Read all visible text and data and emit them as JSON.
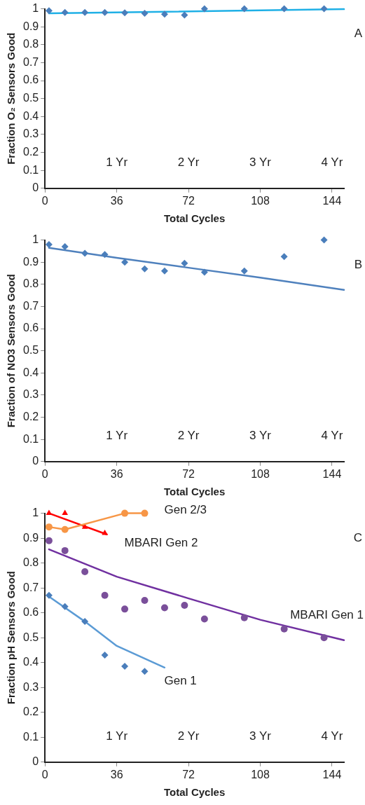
{
  "chart_data": [
    {
      "type": "scatter",
      "ylabel": "Fraction O₂ Sensors Good",
      "xlabel": "Total Cycles",
      "xlim": [
        0,
        150
      ],
      "xticks": [
        0,
        36,
        72,
        108,
        144
      ],
      "ylim": [
        0,
        1
      ],
      "yticks": [
        0,
        0.1,
        0.2,
        0.3,
        0.4,
        0.5,
        0.6,
        0.7,
        0.8,
        0.9,
        1
      ],
      "grid": false,
      "legend": false,
      "annotations": [
        "A",
        "1 Yr",
        "2 Yr",
        "3 Yr",
        "4 Yr"
      ],
      "series": [
        {
          "type": "scatter",
          "marker": "diamond",
          "color": "#4a7ebb",
          "x": [
            2,
            10,
            20,
            30,
            40,
            50,
            60,
            70,
            80,
            100,
            120,
            140
          ],
          "values": [
            0.99,
            0.98,
            0.98,
            0.98,
            0.978,
            0.975,
            0.97,
            0.965,
            1,
            1,
            1,
            1
          ]
        },
        {
          "type": "line",
          "marker": "none",
          "color": "#1fb0e6",
          "x": [
            2,
            150
          ],
          "values": [
            0.975,
            0.998
          ]
        }
      ]
    },
    {
      "type": "scatter",
      "ylabel": "Fraction of NO3 Sensors Good",
      "xlabel": "Total Cycles",
      "xlim": [
        0,
        150
      ],
      "xticks": [
        0,
        36,
        72,
        108,
        144
      ],
      "ylim": [
        0,
        1
      ],
      "yticks": [
        0,
        0.1,
        0.2,
        0.3,
        0.4,
        0.5,
        0.6,
        0.7,
        0.8,
        0.9,
        1
      ],
      "grid": false,
      "legend": false,
      "annotations": [
        "B",
        "1 Yr",
        "2 Yr",
        "3 Yr",
        "4 Yr"
      ],
      "series": [
        {
          "type": "scatter",
          "marker": "diamond",
          "color": "#4a7ebb",
          "x": [
            2,
            10,
            20,
            30,
            40,
            50,
            60,
            70,
            80,
            100,
            120,
            140
          ],
          "values": [
            0.98,
            0.97,
            0.94,
            0.935,
            0.9,
            0.87,
            0.86,
            0.895,
            0.855,
            0.86,
            0.925,
            1
          ]
        },
        {
          "type": "line",
          "marker": "none",
          "color": "#4f81bd",
          "x": [
            2,
            36,
            72,
            108,
            150
          ],
          "values": [
            0.965,
            0.92,
            0.875,
            0.83,
            0.775
          ]
        }
      ]
    },
    {
      "type": "scatter",
      "ylabel": "Fraction pH Sensors Good",
      "xlabel": "Total Cycles",
      "xlim": [
        0,
        150
      ],
      "xticks": [
        0,
        36,
        72,
        108,
        144
      ],
      "ylim": [
        0,
        1
      ],
      "yticks": [
        0,
        0.1,
        0.2,
        0.3,
        0.4,
        0.5,
        0.6,
        0.7,
        0.8,
        0.9,
        1
      ],
      "grid": false,
      "legend": false,
      "annotations": [
        "C",
        "1 Yr",
        "2 Yr",
        "3 Yr",
        "4 Yr"
      ],
      "series": [
        {
          "type": "line",
          "marker": "circle",
          "color": "#f79646",
          "name": "Gen 2/3",
          "x": [
            2,
            10,
            40,
            50
          ],
          "values": [
            0.945,
            0.935,
            1,
            1
          ]
        },
        {
          "type": "scatter",
          "marker": "triangle",
          "color": "#ff0000",
          "name": "MBARI Gen 2",
          "x": [
            2,
            10,
            20,
            30
          ],
          "values": [
            1,
            1,
            0.945,
            0.92
          ]
        },
        {
          "type": "line",
          "marker": "none",
          "color": "#ff0000",
          "x": [
            2,
            31
          ],
          "values": [
            1,
            0.915
          ]
        },
        {
          "type": "scatter",
          "marker": "circle",
          "color": "#7a4f9a",
          "name": "MBARI Gen 1",
          "x": [
            2,
            10,
            20,
            30,
            40,
            50,
            60,
            70,
            80,
            100,
            120,
            140
          ],
          "values": [
            0.89,
            0.85,
            0.765,
            0.67,
            0.615,
            0.65,
            0.62,
            0.63,
            0.575,
            0.58,
            0.535,
            0.5
          ]
        },
        {
          "type": "line",
          "marker": "none",
          "color": "#7030a0",
          "x": [
            2,
            36,
            72,
            108,
            150
          ],
          "values": [
            0.855,
            0.745,
            0.658,
            0.572,
            0.49
          ]
        },
        {
          "type": "scatter",
          "marker": "diamond",
          "color": "#4a7ebb",
          "name": "Gen 1",
          "x": [
            2,
            10,
            20,
            30,
            40,
            50
          ],
          "values": [
            0.67,
            0.625,
            0.565,
            0.43,
            0.385,
            0.365
          ]
        },
        {
          "type": "line",
          "marker": "none",
          "color": "#5b9bd5",
          "x": [
            2,
            20,
            36,
            60
          ],
          "values": [
            0.665,
            0.565,
            0.467,
            0.38
          ]
        }
      ]
    }
  ]
}
